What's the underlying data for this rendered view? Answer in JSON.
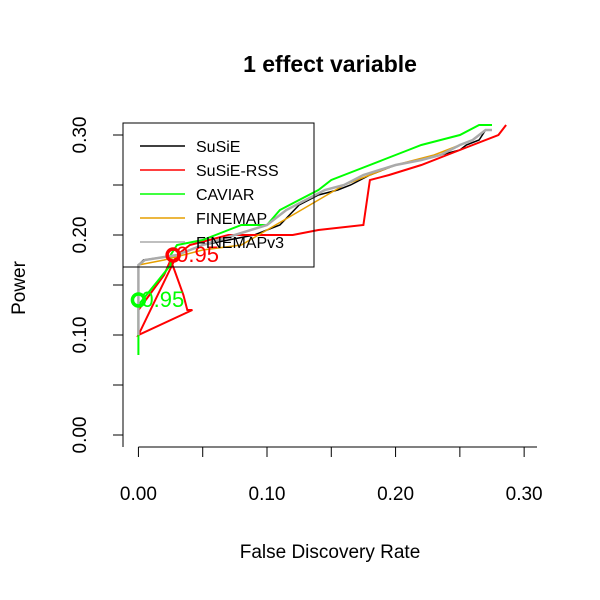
{
  "chart_data": {
    "type": "line",
    "title": "1 effect variable",
    "xlabel": "False Discovery Rate",
    "ylabel": "Power",
    "xlim": [
      -0.012,
      0.31
    ],
    "ylim": [
      -0.012,
      0.312
    ],
    "x_ticks": [
      0.0,
      0.1,
      0.2,
      0.3
    ],
    "x_tick_labels": [
      "0.00",
      "0.10",
      "0.20",
      "0.30"
    ],
    "y_ticks": [
      0.0,
      0.1,
      0.2,
      0.3
    ],
    "y_tick_labels": [
      "0.00",
      "0.10",
      "0.20",
      "0.30"
    ],
    "grid": false,
    "legend": {
      "position": "top-left"
    },
    "series": [
      {
        "name": "SuSiE",
        "color": "#000000",
        "line_width": 1.5,
        "x": [
          0.0,
          0.0,
          0.004,
          0.03,
          0.05,
          0.07,
          0.09,
          0.11,
          0.125,
          0.14,
          0.155,
          0.165,
          0.18,
          0.2,
          0.22,
          0.235,
          0.25,
          0.255,
          0.265,
          0.27
        ],
        "y": [
          0.135,
          0.17,
          0.175,
          0.18,
          0.19,
          0.195,
          0.2,
          0.21,
          0.23,
          0.24,
          0.245,
          0.25,
          0.26,
          0.27,
          0.275,
          0.28,
          0.285,
          0.29,
          0.295,
          0.305
        ]
      },
      {
        "name": "SuSiE-RSS",
        "color": "#ff0000",
        "line_width": 2,
        "x": [
          0.0,
          0.02,
          0.025,
          0.028,
          0.035,
          0.038,
          0.042,
          0.0,
          0.03,
          0.04,
          0.07,
          0.1,
          0.12,
          0.14,
          0.175,
          0.18,
          0.195,
          0.22,
          0.24,
          0.26,
          0.28,
          0.286
        ],
        "y": [
          0.125,
          0.16,
          0.175,
          0.165,
          0.14,
          0.125,
          0.125,
          0.1,
          0.18,
          0.19,
          0.2,
          0.2,
          0.2,
          0.205,
          0.21,
          0.255,
          0.26,
          0.27,
          0.28,
          0.29,
          0.3,
          0.31
        ]
      },
      {
        "name": "CAVIAR",
        "color": "#00ff00",
        "line_width": 2,
        "x": [
          0.0,
          0.0,
          0.025,
          0.025,
          0.03,
          0.05,
          0.06,
          0.08,
          0.1,
          0.11,
          0.125,
          0.14,
          0.15,
          0.16,
          0.17,
          0.19,
          0.21,
          0.22,
          0.235,
          0.25,
          0.265,
          0.275
        ],
        "y": [
          0.08,
          0.13,
          0.17,
          0.18,
          0.19,
          0.195,
          0.2,
          0.21,
          0.21,
          0.225,
          0.235,
          0.245,
          0.255,
          0.26,
          0.265,
          0.275,
          0.285,
          0.29,
          0.295,
          0.3,
          0.31,
          0.31
        ]
      },
      {
        "name": "FINEMAP",
        "color": "#e69f00",
        "line_width": 1.5,
        "x": [
          0.0,
          0.0,
          0.02,
          0.05,
          0.08,
          0.1,
          0.12,
          0.14,
          0.16,
          0.2,
          0.23,
          0.26,
          0.27
        ],
        "y": [
          0.105,
          0.17,
          0.175,
          0.185,
          0.19,
          0.205,
          0.22,
          0.235,
          0.25,
          0.27,
          0.28,
          0.295,
          0.305
        ]
      },
      {
        "name": "FINEMAPv3",
        "color": "#aaaaaa",
        "line_width": 2.5,
        "x": [
          0.0,
          0.0,
          0.005,
          0.03,
          0.05,
          0.075,
          0.1,
          0.115,
          0.13,
          0.145,
          0.16,
          0.175,
          0.2,
          0.22,
          0.235,
          0.25,
          0.26,
          0.265,
          0.27,
          0.275
        ],
        "y": [
          0.1,
          0.17,
          0.175,
          0.18,
          0.19,
          0.2,
          0.21,
          0.225,
          0.235,
          0.245,
          0.25,
          0.26,
          0.27,
          0.275,
          0.28,
          0.29,
          0.295,
          0.3,
          0.305,
          0.305
        ]
      }
    ],
    "annotations": [
      {
        "text": "0.95",
        "x": 0.0,
        "y": 0.135,
        "color": "#00ff00"
      },
      {
        "text": "0.95",
        "x": 0.027,
        "y": 0.18,
        "color": "#ff0000"
      }
    ]
  }
}
